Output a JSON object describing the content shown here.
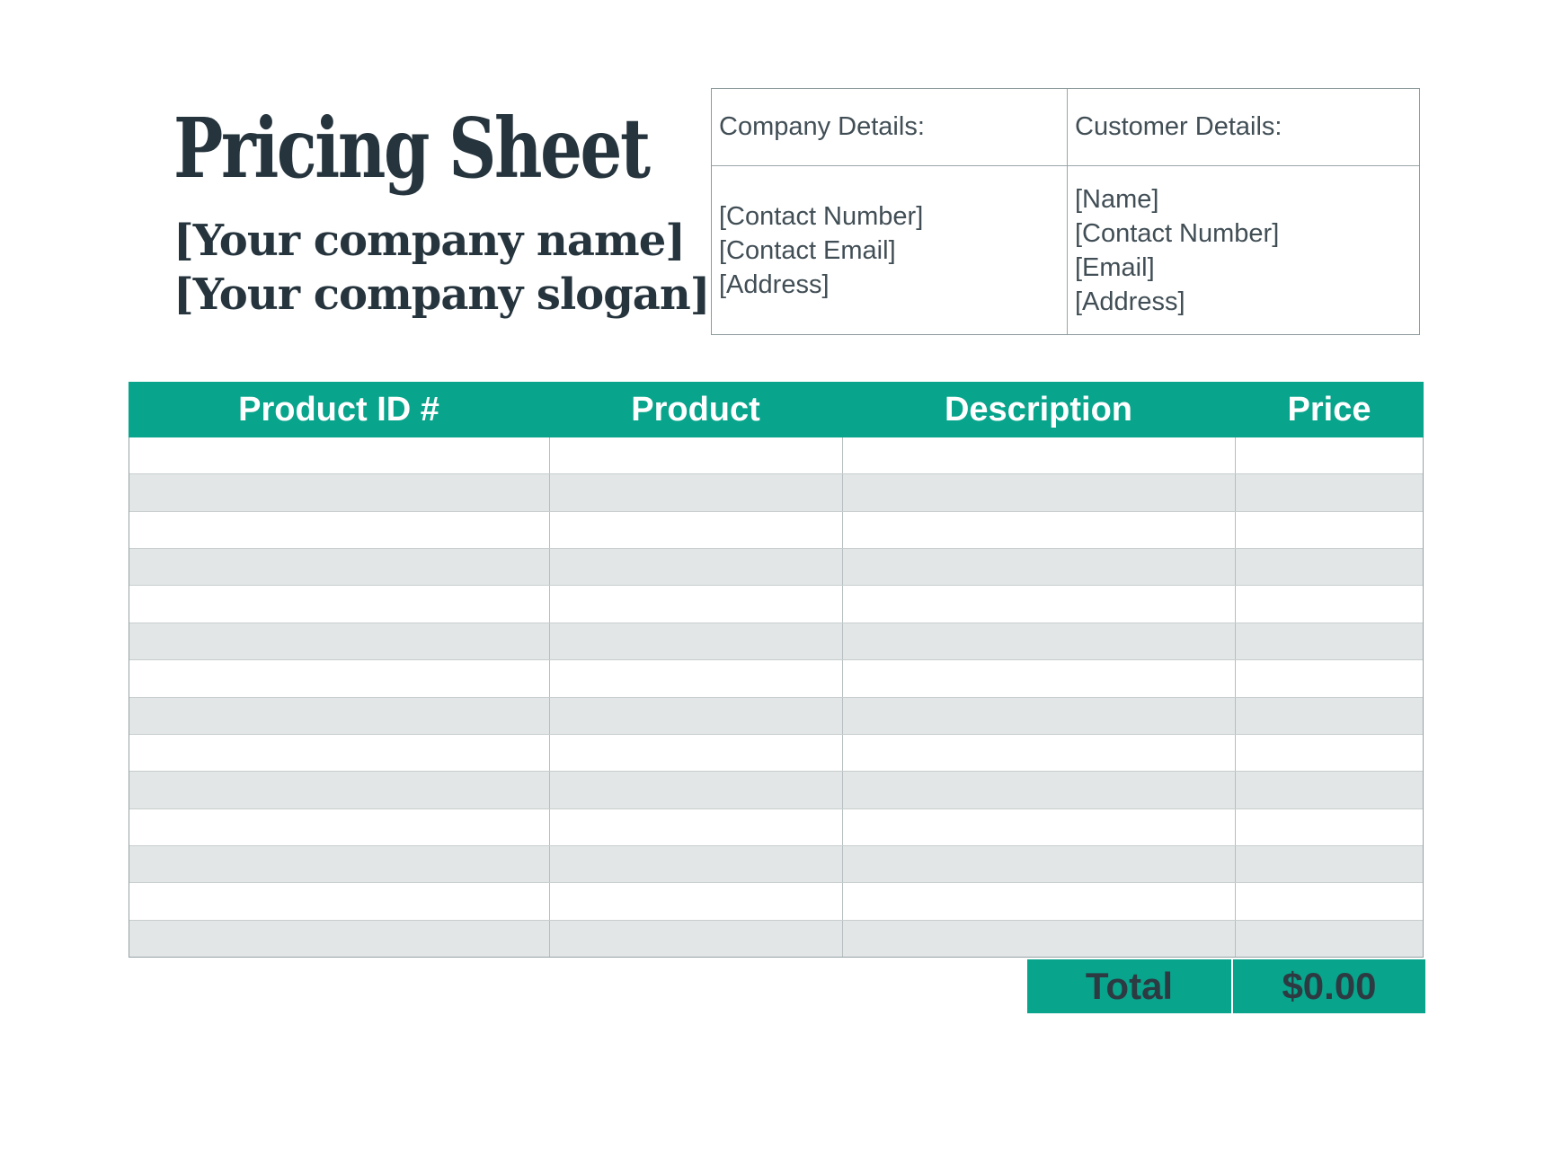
{
  "header": {
    "title": "Pricing Sheet",
    "company_name_placeholder": "[Your company name]",
    "company_slogan_placeholder": "[Your company slogan]"
  },
  "details_panel": {
    "company": {
      "heading": "Company Details:",
      "fields": [
        "[Contact Number]",
        "[Contact Email]",
        "[Address]"
      ]
    },
    "customer": {
      "heading": "Customer Details:",
      "fields": [
        "[Name]",
        "[Contact Number]",
        "[Email]",
        "[Address]"
      ]
    }
  },
  "pricing_table": {
    "columns": [
      "Product ID #",
      "Product",
      "Description",
      "Price"
    ],
    "rows": [
      [
        "",
        "",
        "",
        ""
      ],
      [
        "",
        "",
        "",
        ""
      ],
      [
        "",
        "",
        "",
        ""
      ],
      [
        "",
        "",
        "",
        ""
      ],
      [
        "",
        "",
        "",
        ""
      ],
      [
        "",
        "",
        "",
        ""
      ],
      [
        "",
        "",
        "",
        ""
      ],
      [
        "",
        "",
        "",
        ""
      ],
      [
        "",
        "",
        "",
        ""
      ],
      [
        "",
        "",
        "",
        ""
      ],
      [
        "",
        "",
        "",
        ""
      ],
      [
        "",
        "",
        "",
        ""
      ],
      [
        "",
        "",
        "",
        ""
      ],
      [
        "",
        "",
        "",
        ""
      ]
    ]
  },
  "totals": {
    "label": "Total",
    "value": "$0.00"
  },
  "colors": {
    "accent": "#08a48c",
    "row_alt": "#e2e6e7",
    "heading_text": "#26343d",
    "details_text": "#414e55",
    "total_text": "#2d3a42",
    "table_header_text": "#ffffff"
  }
}
